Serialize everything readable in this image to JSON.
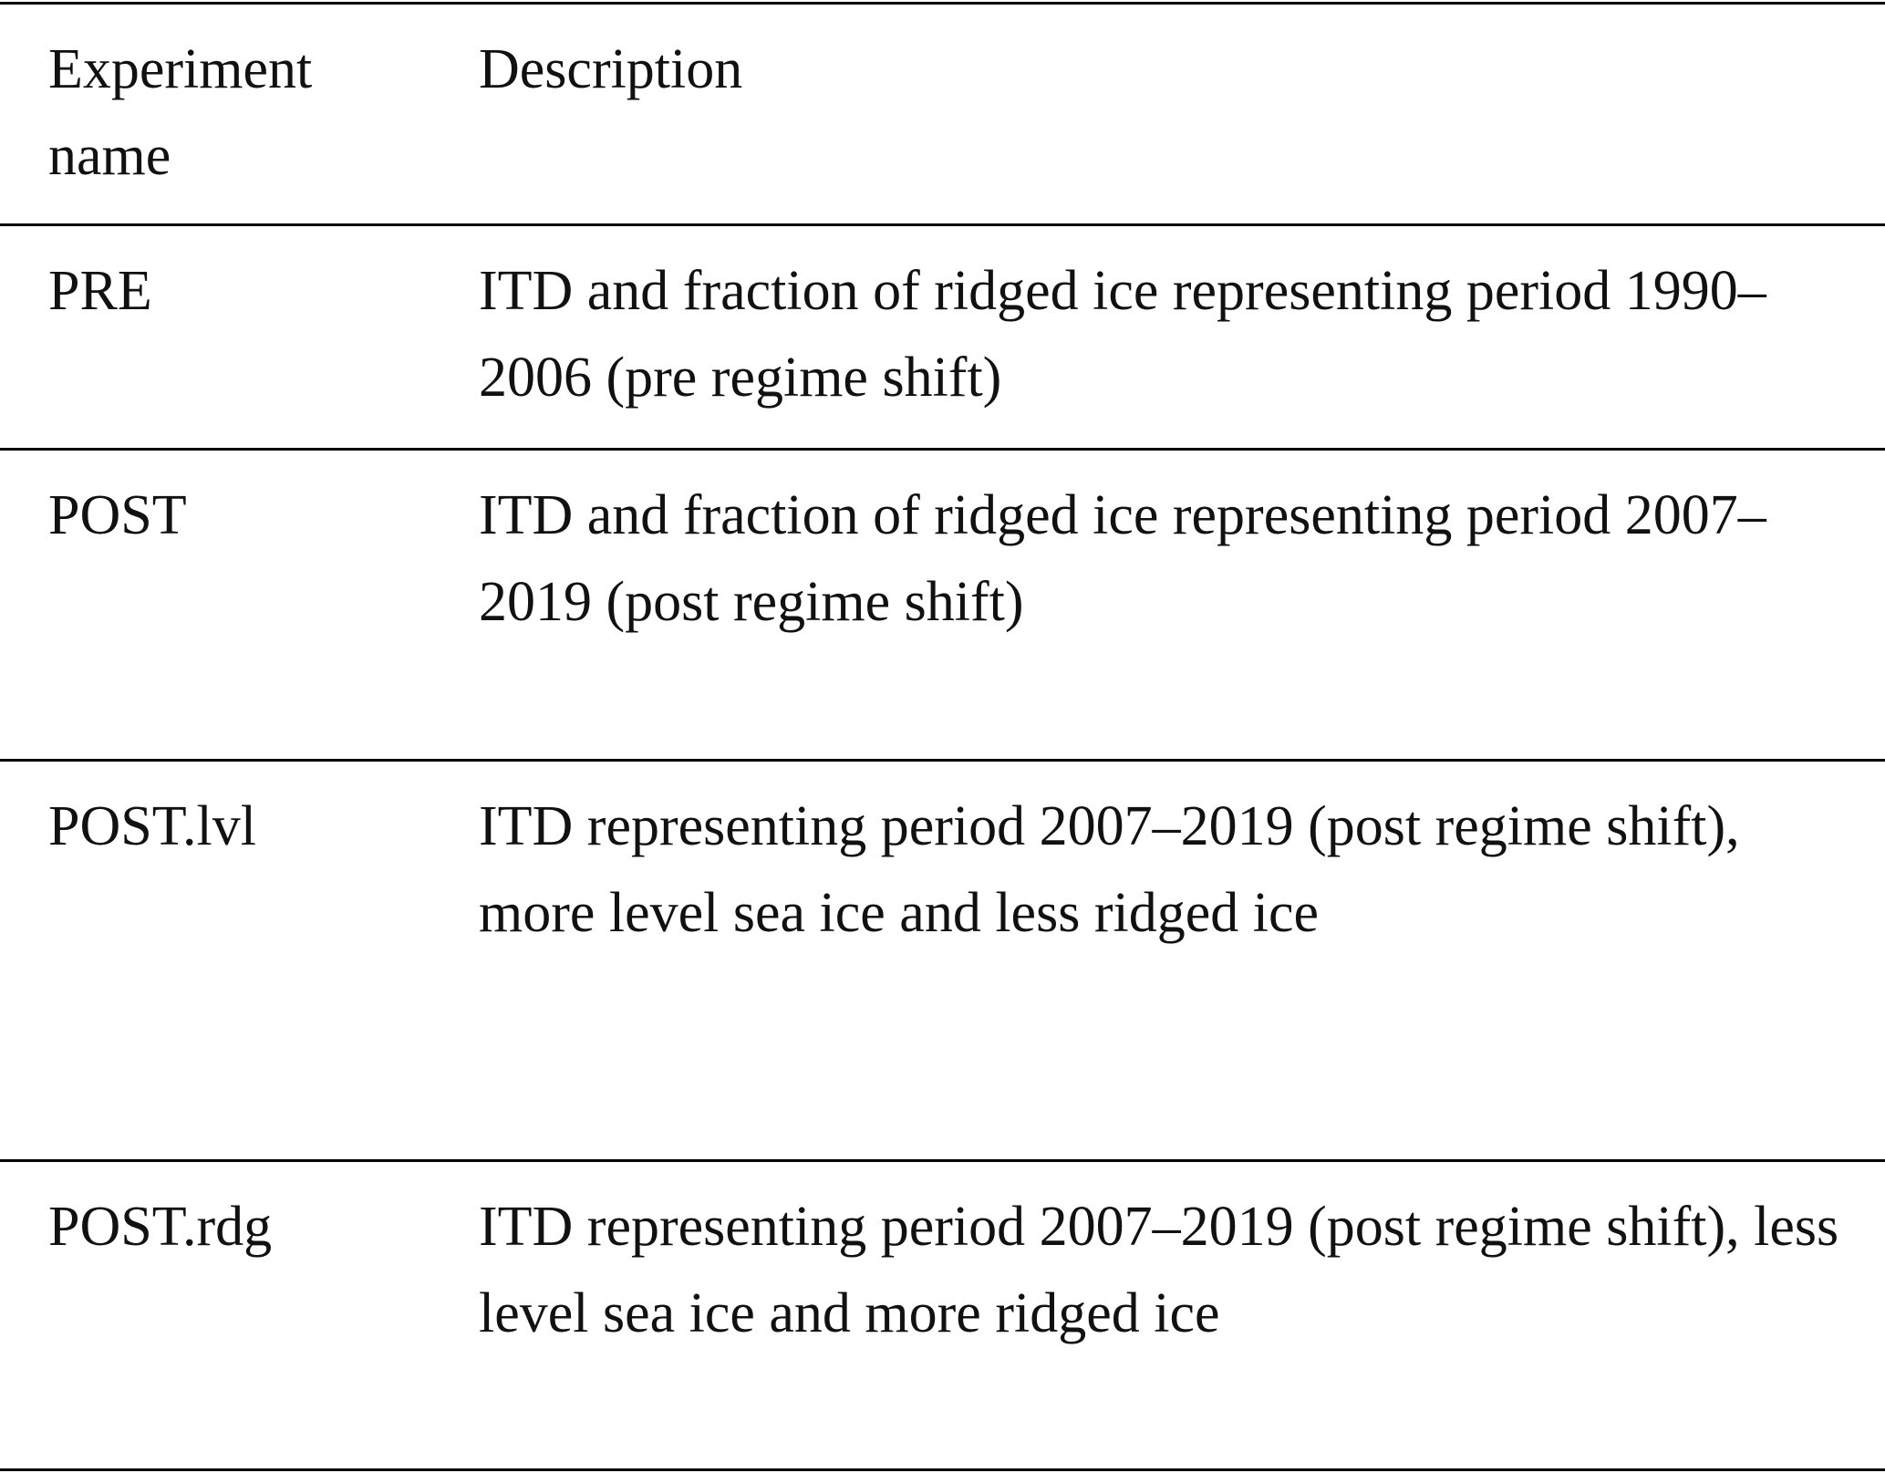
{
  "table": {
    "header": [
      "Experiment name",
      "Description"
    ],
    "rows": [
      [
        "PRE",
        "ITD and fraction of ridged ice representing period 1990–2006 (pre regime shift)"
      ],
      [
        "POST",
        "ITD and fraction of ridged ice representing period 2007–2019 (post regime shift)"
      ],
      [
        "POST.lvl",
        "ITD representing period 2007–2019 (post regime shift), more level sea ice and less ridged ice"
      ],
      [
        "POST.rdg",
        "ITD representing period 2007–2019 (post regime shift), less level sea ice and more ridged ice"
      ]
    ]
  }
}
